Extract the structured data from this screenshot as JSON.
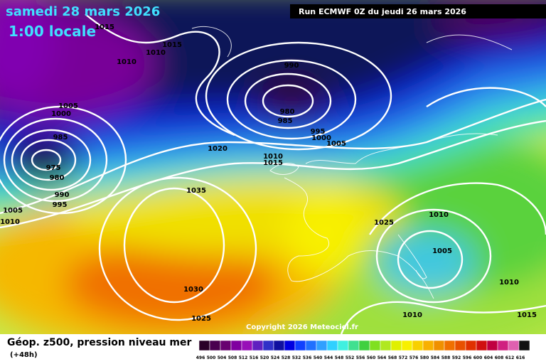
{
  "header": {
    "date": "samedi 28 mars 2026",
    "time": "1:00 locale",
    "run": "Run ECMWF 0Z du jeudi 26 mars 2026"
  },
  "isobar_labels": [
    1015,
    1015,
    1010,
    1010,
    990,
    1005,
    1000,
    980,
    985,
    985,
    995,
    1000,
    1005,
    1020,
    1010,
    1015,
    975,
    980,
    990,
    995,
    1035,
    1005,
    1010,
    1025,
    1010,
    1005,
    1030,
    1010,
    1010,
    1015,
    1025
  ],
  "copyright": "Copyright 2026 Meteociel.fr",
  "footer": {
    "title": "Géop. z500, pression niveau mer",
    "lead": "(+48h)"
  },
  "scale": {
    "labels": [
      496,
      500,
      504,
      508,
      512,
      516,
      520,
      524,
      528,
      532,
      536,
      540,
      544,
      548,
      552,
      556,
      560,
      564,
      568,
      572,
      576,
      580,
      584,
      588,
      592,
      596,
      600,
      604,
      608,
      612,
      616
    ]
  }
}
